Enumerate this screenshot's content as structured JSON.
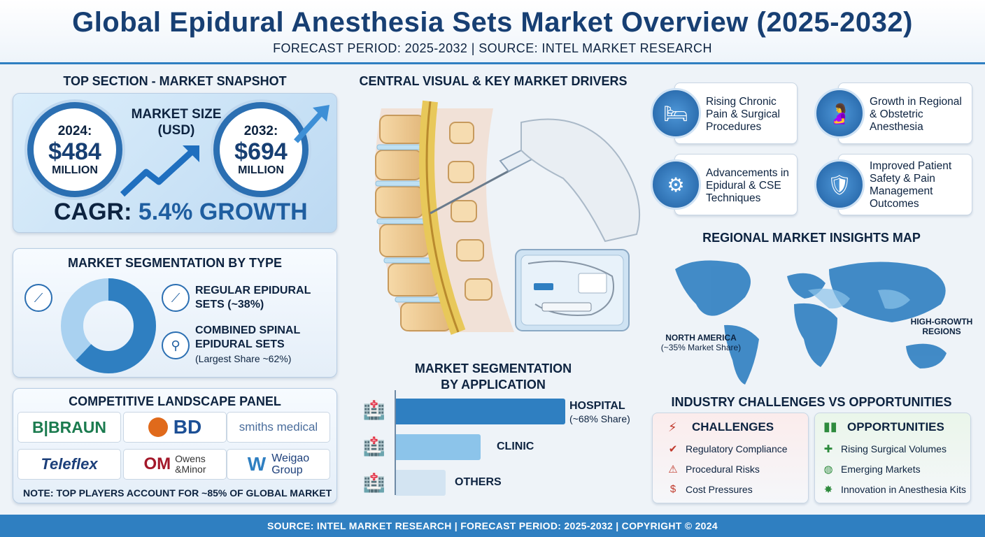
{
  "header": {
    "title": "Global Epidural Anesthesia Sets Market Overview (2025-2032)",
    "subtitle": "FORECAST PERIOD: 2025-2032  | SOURCE: INTEL MARKET RESEARCH"
  },
  "snapshot": {
    "heading": "TOP SECTION - MARKET SNAPSHOT",
    "market_size_label": "MARKET SIZE",
    "market_size_unit": "(USD)",
    "start": {
      "year": "2024:",
      "value": "$484",
      "unit": "MILLION"
    },
    "end": {
      "year": "2032:",
      "value": "$694",
      "unit": "MILLION"
    },
    "cagr_prefix": "CAGR:",
    "cagr_value": "5.4% GROWTH"
  },
  "type_segmentation": {
    "heading": "MARKET SEGMENTATION BY TYPE",
    "items": [
      {
        "label": "REGULAR EPIDURAL",
        "label2": "SETS (~38%)",
        "share": 38
      },
      {
        "label": "COMBINED SPINAL",
        "label2": "EPIDURAL SETS",
        "note": "(Largest Share ~62%)",
        "share": 62
      }
    ]
  },
  "competitive": {
    "heading": "COMPETITIVE LANDSCAPE PANEL",
    "logos": [
      "B|BRAUN",
      "BD",
      "smiths medical",
      "Teleflex",
      "Owens",
      "Minor",
      "Weigao",
      "Group"
    ],
    "om": "OM",
    "note": "NOTE: TOP PLAYERS ACCOUNT FOR ~85% OF GLOBAL MARKET"
  },
  "central": {
    "heading": "CENTRAL VISUAL & KEY MARKET DRIVERS"
  },
  "drivers": [
    {
      "lines": [
        "Rising Chronic",
        "Pain & Surgical",
        "Procedures"
      ],
      "icon": "patient-bed-icon"
    },
    {
      "lines": [
        "Growth in Regional",
        "& Obstetric",
        "Anesthesia"
      ],
      "icon": "pregnancy-icon"
    },
    {
      "lines": [
        "Advancements in",
        "Epidural & CSE",
        "Techniques"
      ],
      "icon": "gear-brain-icon"
    },
    {
      "lines": [
        "Improved Patient",
        "Safety & Pain",
        "Management",
        "Outcomes"
      ],
      "icon": "shield-person-icon"
    }
  ],
  "map": {
    "heading": "REGIONAL MARKET INSIGHTS MAP",
    "north_america": "NORTH AMERICA",
    "north_america_share": "(~35% Market Share)",
    "high_growth": "HIGH-GROWTH",
    "high_growth2": "REGIONS"
  },
  "application": {
    "heading1": "MARKET SEGMENTATION",
    "heading2": "BY APPLICATION",
    "bars": [
      {
        "label": "HOSPITAL",
        "note": "(~68% Share)",
        "share": 68,
        "color": "#2f7fc1"
      },
      {
        "label": "CLINIC",
        "note": "",
        "share": 34,
        "color": "#8cc4ea"
      },
      {
        "label": "OTHERS",
        "note": "",
        "share": 20,
        "color": "#d3e4f2"
      }
    ]
  },
  "chal_opp": {
    "heading": "INDUSTRY CHALLENGES VS OPPORTUNITIES",
    "challenges_title": "CHALLENGES",
    "challenges": [
      "Regulatory Compliance",
      "Procedural Risks",
      "Cost Pressures"
    ],
    "opportunities_title": "OPPORTUNITIES",
    "opportunities": [
      "Rising Surgical Volumes",
      "Emerging Markets",
      "Innovation in Anesthesia Kits"
    ]
  },
  "footer": {
    "text": "SOURCE: INTEL MARKET RESEARCH | FORECAST PERIOD: 2025-2032 | COPYRIGHT © 2024"
  }
}
